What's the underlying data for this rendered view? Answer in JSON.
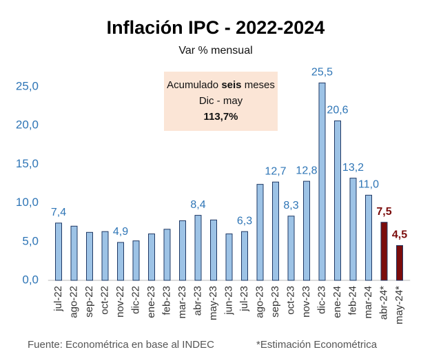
{
  "chart_data": {
    "type": "bar",
    "title": "Inflación IPC - 2022-2024",
    "subtitle": "Var % mensual",
    "annotation": [
      [
        "Acumulado",
        "seis",
        "meses"
      ],
      "Dic - may",
      "113,7%"
    ],
    "source": "Fuente: Econométrica en base al INDEC",
    "footnote": "*Estimación Econométrica",
    "categories": [
      "jul-22",
      "ago-22",
      "sep-22",
      "oct-22",
      "nov-22",
      "dic-22",
      "ene-23",
      "feb-23",
      "mar-23",
      "abr-23",
      "may-23",
      "jun-23",
      "jul-23",
      "ago-23",
      "sep-23",
      "oct-23",
      "nov-23",
      "dic-23",
      "ene-24",
      "feb-24",
      "mar-24",
      "abr-24*",
      "may-24*"
    ],
    "values": [
      7.4,
      7.0,
      6.2,
      6.3,
      4.9,
      5.1,
      6.0,
      6.6,
      7.7,
      8.4,
      7.8,
      6.0,
      6.3,
      12.4,
      12.7,
      8.3,
      12.8,
      25.5,
      20.6,
      13.2,
      11.0,
      7.5,
      4.5
    ],
    "value_labels": [
      "7,4",
      null,
      null,
      null,
      "4,9",
      null,
      null,
      null,
      null,
      "8,4",
      null,
      null,
      "6,3",
      null,
      "12,7",
      "8,3",
      "12,8",
      "25,5",
      "20,6",
      "13,2",
      "11,0",
      "7,5",
      "4,5"
    ],
    "color": "#9dc3e6",
    "colors": [
      "#9dc3e6",
      "#9dc3e6",
      "#9dc3e6",
      "#9dc3e6",
      "#9dc3e6",
      "#9dc3e6",
      "#9dc3e6",
      "#9dc3e6",
      "#9dc3e6",
      "#9dc3e6",
      "#9dc3e6",
      "#9dc3e6",
      "#9dc3e6",
      "#9dc3e6",
      "#9dc3e6",
      "#9dc3e6",
      "#9dc3e6",
      "#9dc3e6",
      "#9dc3e6",
      "#9dc3e6",
      "#9dc3e6",
      "#7b0c0c",
      "#7b0c0c"
    ],
    "label_color": "#2e75b6",
    "ylim": [
      0,
      26
    ],
    "yticks": [
      {
        "value": 0,
        "label": "0,0"
      },
      {
        "value": 5,
        "label": "5,0"
      },
      {
        "value": 10,
        "label": "10,0"
      },
      {
        "value": 15,
        "label": "15,0"
      },
      {
        "value": 20,
        "label": "20,0"
      },
      {
        "value": 25,
        "label": "25,0"
      }
    ],
    "grid": false
  }
}
